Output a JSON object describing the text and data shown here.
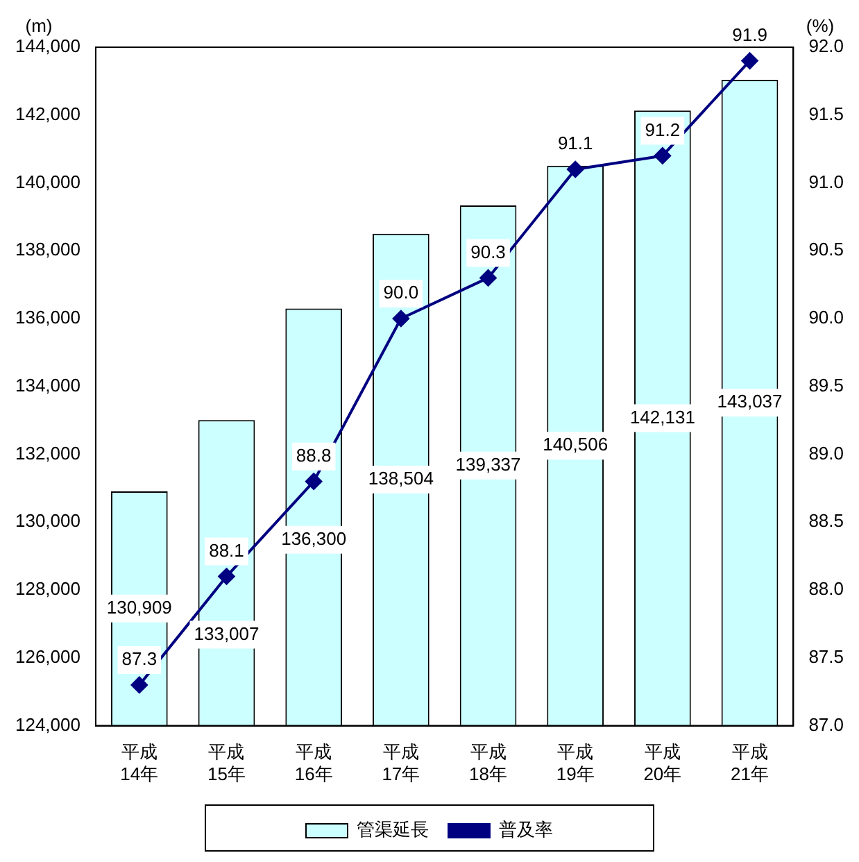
{
  "chart_data": {
    "type": "bar",
    "categories": [
      "平成\n14年",
      "平成\n15年",
      "平成\n16年",
      "平成\n17年",
      "平成\n18年",
      "平成\n19年",
      "平成\n20年",
      "平成\n21年"
    ],
    "ylabel": "(m)",
    "y2label": "(%)",
    "ylim": [
      124000,
      144000
    ],
    "yticks": [
      {
        "value": 124000,
        "label": "124,000"
      },
      {
        "value": 126000,
        "label": "126,000"
      },
      {
        "value": 128000,
        "label": "128,000"
      },
      {
        "value": 130000,
        "label": "130,000"
      },
      {
        "value": 132000,
        "label": "132,000"
      },
      {
        "value": 134000,
        "label": "134,000"
      },
      {
        "value": 136000,
        "label": "136,000"
      },
      {
        "value": 138000,
        "label": "138,000"
      },
      {
        "value": 140000,
        "label": "140,000"
      },
      {
        "value": 142000,
        "label": "142,000"
      },
      {
        "value": 144000,
        "label": "144,000"
      }
    ],
    "y2lim": [
      87,
      92
    ],
    "y2ticks": [
      {
        "value": 87,
        "label": "87.0"
      },
      {
        "value": 87.5,
        "label": "87.5"
      },
      {
        "value": 88,
        "label": "88.0"
      },
      {
        "value": 88.5,
        "label": "88.5"
      },
      {
        "value": 89,
        "label": "89.0"
      },
      {
        "value": 89.5,
        "label": "89.5"
      },
      {
        "value": 90,
        "label": "90.0"
      },
      {
        "value": 90.5,
        "label": "90.5"
      },
      {
        "value": 91,
        "label": "91.0"
      },
      {
        "value": 91.5,
        "label": "91.5"
      },
      {
        "value": 92,
        "label": "92.0"
      }
    ],
    "series": [
      {
        "name": "管渠延長",
        "color": "#ccffff",
        "values": [
          130909,
          133007,
          136300,
          138504,
          139337,
          140506,
          142131,
          143037
        ],
        "value_labels": [
          "130,909",
          "133,007",
          "136,300",
          "138,504",
          "139,337",
          "140,506",
          "142,131",
          "143,037"
        ]
      },
      {
        "name": "普及率",
        "type": "line",
        "axis": "y2",
        "color": "#000080",
        "marker": "diamond",
        "values": [
          87.3,
          88.1,
          88.8,
          90.0,
          90.3,
          91.1,
          91.2,
          91.9
        ],
        "value_labels": [
          "87.3",
          "88.1",
          "88.8",
          "90.0",
          "90.3",
          "91.1",
          "91.2",
          "91.9"
        ]
      }
    ],
    "legend": "bottom",
    "grid": false
  }
}
